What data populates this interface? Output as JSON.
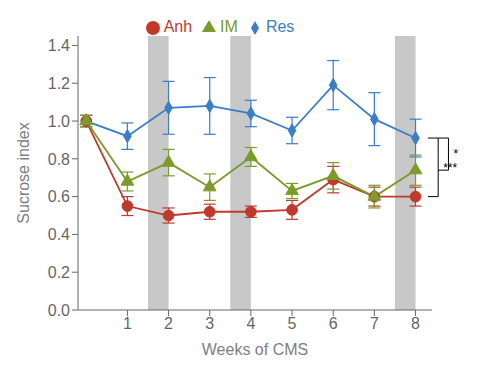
{
  "chart_data": {
    "type": "line",
    "xlabel": "Weeks of CMS",
    "ylabel": "Sucrose index",
    "x": [
      0,
      1,
      2,
      3,
      4,
      5,
      6,
      7,
      8
    ],
    "series": [
      {
        "name": "Res",
        "color": "#3A7DC9",
        "marker": "diamond",
        "values": [
          1.0,
          0.92,
          1.07,
          1.08,
          1.04,
          0.95,
          1.19,
          1.01,
          0.91
        ],
        "error": [
          0.03,
          0.07,
          0.14,
          0.15,
          0.07,
          0.07,
          0.13,
          0.14,
          0.1
        ]
      },
      {
        "name": "Anh",
        "color": "#C0392B",
        "marker": "circle",
        "values": [
          1.0,
          0.55,
          0.5,
          0.52,
          0.52,
          0.53,
          0.69,
          0.6,
          0.6
        ],
        "error": [
          0.03,
          0.05,
          0.04,
          0.04,
          0.03,
          0.05,
          0.07,
          0.05,
          0.05
        ]
      },
      {
        "name": "IM",
        "color": "#7D9B2A",
        "marker": "triangle",
        "values": [
          1.0,
          0.68,
          0.78,
          0.65,
          0.81,
          0.63,
          0.71,
          0.6,
          0.74
        ],
        "error": [
          0.03,
          0.05,
          0.07,
          0.07,
          0.05,
          0.04,
          0.07,
          0.06,
          0.08
        ]
      }
    ],
    "bands": {
      "ranges": [
        [
          1.5,
          2.0
        ],
        [
          3.5,
          4.0
        ],
        [
          7.5,
          8.0
        ]
      ],
      "color": "#C8C8C8"
    },
    "annotations": [
      {
        "text": "***",
        "x": 8,
        "between": [
          "Res",
          "Anh"
        ]
      },
      {
        "text": "*",
        "x": 8,
        "between": [
          "Res",
          "IM"
        ]
      }
    ],
    "xlim": [
      -0.2,
      8.4
    ],
    "xticks": [
      1,
      2,
      3,
      4,
      5,
      6,
      7,
      8
    ],
    "ylim": [
      0.0,
      1.45
    ],
    "yticks": [
      {
        "value": 0.0,
        "label": "0.0"
      },
      0.2,
      0.4,
      0.6,
      0.8,
      {
        "value": 1.0,
        "label": "1.0"
      },
      1.2,
      1.4
    ],
    "grid": false,
    "legend": "top"
  }
}
